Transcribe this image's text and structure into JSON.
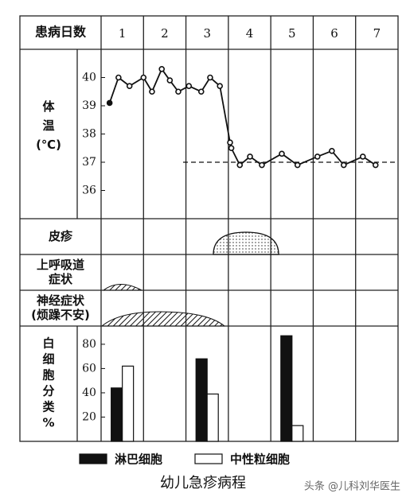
{
  "header": {
    "label": "患病日数",
    "days": [
      "1",
      "2",
      "3",
      "4",
      "5",
      "6",
      "7"
    ]
  },
  "chart_data": [
    {
      "type": "line",
      "y_label": [
        "体",
        "温",
        "(℃)"
      ],
      "x": [
        0.7,
        0.91,
        1.17,
        1.5,
        1.7,
        1.93,
        2.12,
        2.32,
        2.57,
        2.86,
        3.07,
        3.3,
        3.54,
        3.57,
        3.77,
        4.01,
        4.29,
        4.76,
        5.13,
        5.6,
        5.94,
        6.22,
        6.67,
        6.97
      ],
      "values": [
        39.1,
        40.0,
        39.7,
        40.0,
        39.5,
        40.3,
        39.9,
        39.5,
        39.7,
        39.5,
        40.0,
        39.7,
        37.7,
        37.5,
        36.9,
        37.2,
        36.9,
        37.3,
        36.9,
        37.2,
        37.4,
        36.9,
        37.2,
        36.9
      ],
      "xlim": [
        0.5,
        7.5
      ],
      "ylim": [
        35,
        41
      ],
      "yticks": [
        36,
        37,
        38,
        39,
        40
      ],
      "reference_line": 37,
      "color": "#111"
    },
    {
      "type": "bar",
      "y_label": [
        "白",
        "细",
        "胞",
        "分",
        "类",
        "%"
      ],
      "x": [
        1,
        3,
        5
      ],
      "series": [
        {
          "name": "淋巴细胞",
          "color": "#111",
          "values": [
            44,
            68,
            87
          ]
        },
        {
          "name": "中性粒细胞",
          "color": "#fff",
          "values": [
            62,
            39,
            13
          ]
        }
      ],
      "xlim": [
        0.5,
        7.5
      ],
      "ylim": [
        0,
        95
      ],
      "yticks": [
        20,
        40,
        60,
        80
      ]
    }
  ],
  "rows": [
    {
      "label": [
        "皮疹"
      ]
    },
    {
      "label": [
        "上呼吸道",
        "症状"
      ]
    },
    {
      "label": [
        "神经症状",
        "(烦躁不安)"
      ]
    }
  ],
  "caption": "幼儿急疹病程",
  "watermark": "头条 @儿科刘华医生"
}
